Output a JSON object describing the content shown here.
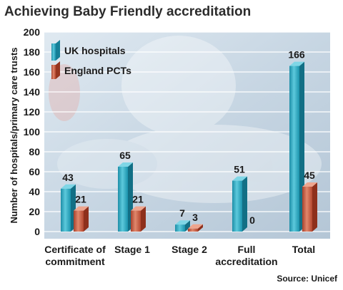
{
  "chart_data": {
    "type": "bar",
    "title": "Achieving Baby Friendly accreditation",
    "ylabel": "Number of hospitals/primary care trusts",
    "xlabel": "",
    "ylim": [
      0,
      200
    ],
    "yticks": [
      "0",
      "20",
      "40",
      "60",
      "80",
      "100",
      "120",
      "140",
      "160",
      "180",
      "200"
    ],
    "grid": true,
    "legend_position": "top-left",
    "categories": [
      [
        "Certificate of",
        "commitment"
      ],
      [
        "Stage 1"
      ],
      [
        "Stage 2"
      ],
      [
        "Full",
        "accreditation"
      ],
      [
        "Total"
      ]
    ],
    "series": [
      {
        "name": "UK hospitals",
        "values": [
          43,
          65,
          7,
          51,
          166
        ],
        "labels": [
          "43",
          "65",
          "7",
          "51",
          "166"
        ],
        "color": "#2aa7c0"
      },
      {
        "name": "England PCTs",
        "values": [
          21,
          21,
          3,
          0,
          45
        ],
        "labels": [
          "21",
          "21",
          "3",
          "0",
          "45"
        ],
        "color": "#c9573f"
      }
    ],
    "source": "Source: Unicef"
  }
}
